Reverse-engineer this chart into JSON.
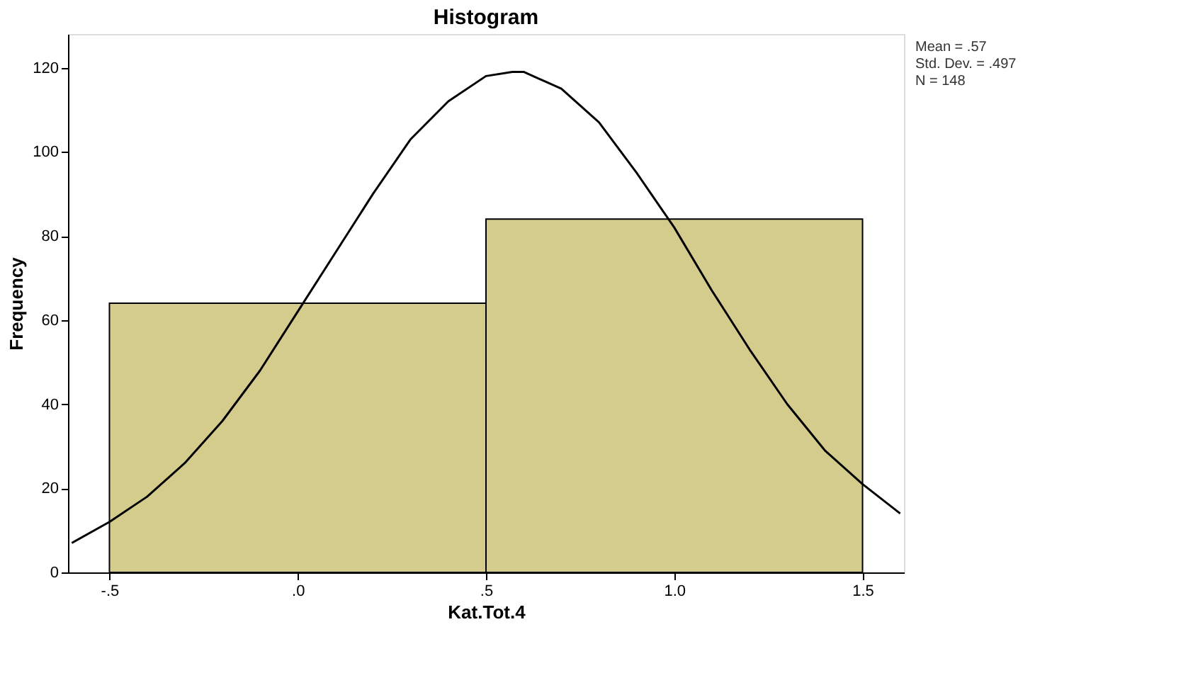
{
  "chart_data": {
    "type": "histogram",
    "title": "Histogram",
    "xlabel": "Kat.Tot.4",
    "ylabel": "Frequency",
    "bins": [
      -0.5,
      0.5,
      1.5
    ],
    "values": [
      64,
      84
    ],
    "color": "#d4cc8c",
    "series": [
      {
        "type": "line",
        "color": "#000000",
        "x": [
          -0.6,
          -0.5,
          -0.4,
          -0.3,
          -0.2,
          -0.1,
          0.0,
          0.1,
          0.2,
          0.3,
          0.4,
          0.5,
          0.57,
          0.6,
          0.7,
          0.8,
          0.9,
          1.0,
          1.1,
          1.2,
          1.3,
          1.4,
          1.5,
          1.6
        ],
        "values": [
          7,
          12,
          18,
          26,
          36,
          48,
          62,
          76,
          90,
          103,
          112,
          118,
          119,
          119,
          115,
          107,
          95,
          82,
          67,
          53,
          40,
          29,
          21,
          14
        ]
      }
    ],
    "xlim": [
      -0.61,
      1.61
    ],
    "ylim": [
      0,
      128
    ],
    "xticks": [
      {
        "value": -0.5,
        "label": "-.5"
      },
      {
        "value": 0,
        "label": ".0"
      },
      {
        "value": 0.5,
        "label": ".5"
      },
      {
        "value": 1.0,
        "label": "1.0"
      },
      {
        "value": 1.5,
        "label": "1.5"
      }
    ],
    "yticks": [
      0,
      20,
      40,
      60,
      80,
      100,
      120
    ],
    "grid": false,
    "annotations": [
      "Mean = .57",
      "Std. Dev. = .497",
      "N = 148"
    ]
  }
}
